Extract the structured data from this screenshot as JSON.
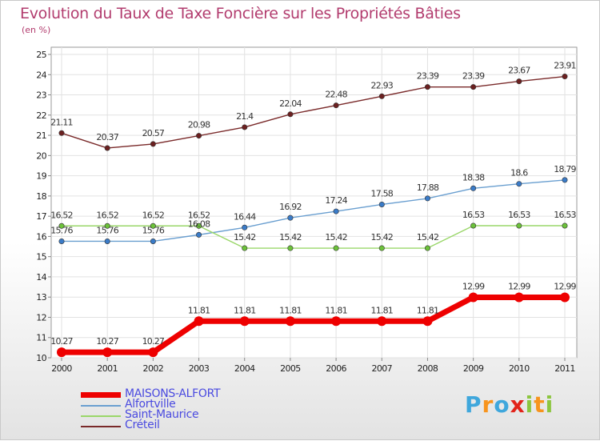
{
  "header": {
    "title": "Evolution du Taux de Taxe Foncière sur les Propriétés Bâties",
    "unit": "(en %)"
  },
  "chart_data": {
    "type": "line",
    "title": "Evolution du Taux de Taxe Foncière sur les Propriétés Bâties",
    "ylabel": "(en %)",
    "xlabel": "",
    "x": [
      "2000",
      "2001",
      "2002",
      "2003",
      "2004",
      "2005",
      "2006",
      "2007",
      "2008",
      "2009",
      "2010",
      "2011"
    ],
    "ylim": [
      10,
      25
    ],
    "yticks": [
      "10",
      "11",
      "12",
      "13",
      "14",
      "15",
      "16",
      "17",
      "18",
      "19",
      "20",
      "21",
      "22",
      "23",
      "24",
      "25"
    ],
    "grid": true,
    "legend_position": "bottom-left",
    "series": [
      {
        "name": "Créteil",
        "color": "#7a2a2a",
        "point_color": "#6b2020",
        "values": [
          21.11,
          20.37,
          20.57,
          20.98,
          21.4,
          22.04,
          22.48,
          22.93,
          23.39,
          23.39,
          23.67,
          23.91
        ],
        "labels": [
          "21.11",
          "20.37",
          "20.57",
          "20.98",
          "21.4",
          "22.04",
          "22.48",
          "22.93",
          "23.39",
          "23.39",
          "23.67",
          "23.91"
        ]
      },
      {
        "name": "Alfortville",
        "color": "#6a9fd0",
        "point_color": "#3a7bc8",
        "values": [
          15.76,
          15.76,
          15.76,
          16.08,
          16.44,
          16.92,
          17.24,
          17.58,
          17.88,
          18.38,
          18.6,
          18.79
        ],
        "labels": [
          "15.76",
          "15.76",
          "15.76",
          "16.08",
          "16.44",
          "16.92",
          "17.24",
          "17.58",
          "17.88",
          "18.38",
          "18.6",
          "18.79"
        ]
      },
      {
        "name": "Saint-Maurice",
        "color": "#9ad76a",
        "point_color": "#6cc23a",
        "values": [
          16.52,
          16.52,
          16.52,
          16.52,
          15.42,
          15.42,
          15.42,
          15.42,
          15.42,
          16.53,
          16.53,
          16.53
        ],
        "labels": [
          "16.52",
          "16.52",
          "16.52",
          "16.52",
          "15.42",
          "15.42",
          "15.42",
          "15.42",
          "15.42",
          "16.53",
          "16.53",
          "16.53"
        ]
      },
      {
        "name": "MAISONS-ALFORT",
        "color": "#ee0000",
        "point_color": "#ee0000",
        "values": [
          10.27,
          10.27,
          10.27,
          11.81,
          11.81,
          11.81,
          11.81,
          11.81,
          11.81,
          12.99,
          12.99,
          12.99
        ],
        "labels": [
          "10.27",
          "10.27",
          "10.27",
          "11.81",
          "11.81",
          "11.81",
          "11.81",
          "11.81",
          "11.81",
          "12.99",
          "12.99",
          "12.99"
        ]
      }
    ]
  },
  "legend": {
    "items": [
      {
        "label": "MAISONS-ALFORT",
        "color": "#ee0000"
      },
      {
        "label": "Alfortville",
        "color": "#6a9fd0"
      },
      {
        "label": "Saint-Maurice",
        "color": "#9ad76a"
      },
      {
        "label": "Créteil",
        "color": "#7a2a2a"
      }
    ]
  },
  "logo": {
    "letters": [
      "P",
      "r",
      "o",
      "x",
      "i",
      "t",
      "i"
    ],
    "colors": [
      "#3fa7dc",
      "#f7941d",
      "#3fa7dc",
      "#e2231a",
      "#8cc63f",
      "#f7941d",
      "#8cc63f"
    ]
  }
}
